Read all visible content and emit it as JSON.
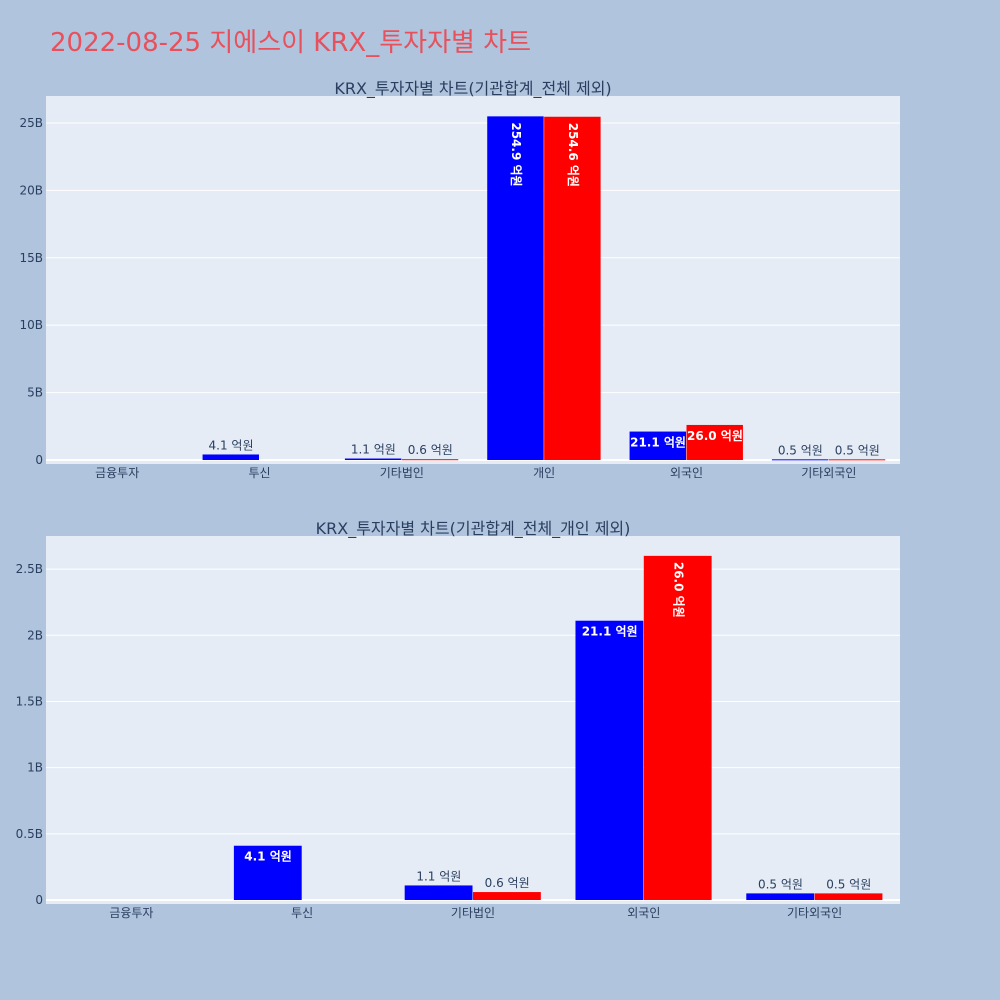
{
  "page": {
    "title": "2022-08-25 지에스이 KRX_투자자별 차트"
  },
  "colors": {
    "background": "#b0c4de",
    "plot_bg": "#e5ecf6",
    "gridline": "#ffffff",
    "series_buy": "#0000ff",
    "series_sell": "#ff0000",
    "title": "#e8505b"
  },
  "chart_data": [
    {
      "type": "bar",
      "title": "KRX_투자자별 차트(기관합계_전체 제외)",
      "categories": [
        "금융투자",
        "투신",
        "기타법인",
        "개인",
        "외국인",
        "기타외국인"
      ],
      "series": [
        {
          "values": [
            0,
            410000000,
            110000000,
            25490000000,
            2110000000,
            50000000
          ],
          "labels": [
            "",
            "4.1 억원",
            "1.1 억원",
            "254.9 억원",
            "21.1 억원",
            "0.5 억원"
          ]
        },
        {
          "values": [
            0,
            0,
            60000000,
            25460000000,
            2600000000,
            50000000
          ],
          "labels": [
            "",
            "",
            "0.6 억원",
            "254.6 억원",
            "26.0 억원",
            "0.5 억원"
          ]
        }
      ],
      "yticks": [
        0,
        5000000000,
        10000000000,
        15000000000,
        20000000000,
        25000000000
      ],
      "ytick_labels": [
        "0",
        "5B",
        "10B",
        "15B",
        "20B",
        "25B"
      ],
      "ylim": [
        0,
        27000000000
      ],
      "grid": true,
      "legend": "none"
    },
    {
      "type": "bar",
      "title": "KRX_투자자별 차트(기관합계_전체_개인 제외)",
      "categories": [
        "금융투자",
        "투신",
        "기타법인",
        "외국인",
        "기타외국인"
      ],
      "series": [
        {
          "values": [
            0,
            410000000,
            110000000,
            2110000000,
            50000000
          ],
          "labels": [
            "",
            "4.1 억원",
            "1.1 억원",
            "21.1 억원",
            "0.5 억원"
          ]
        },
        {
          "values": [
            0,
            0,
            60000000,
            2600000000,
            50000000
          ],
          "labels": [
            "",
            "",
            "0.6 억원",
            "26.0 억원",
            "0.5 억원"
          ]
        }
      ],
      "yticks": [
        0,
        500000000,
        1000000000,
        1500000000,
        2000000000,
        2500000000
      ],
      "ytick_labels": [
        "0",
        "0.5B",
        "1B",
        "1.5B",
        "2B",
        "2.5B"
      ],
      "ylim": [
        0,
        2750000000
      ],
      "grid": true,
      "legend": "none"
    }
  ]
}
